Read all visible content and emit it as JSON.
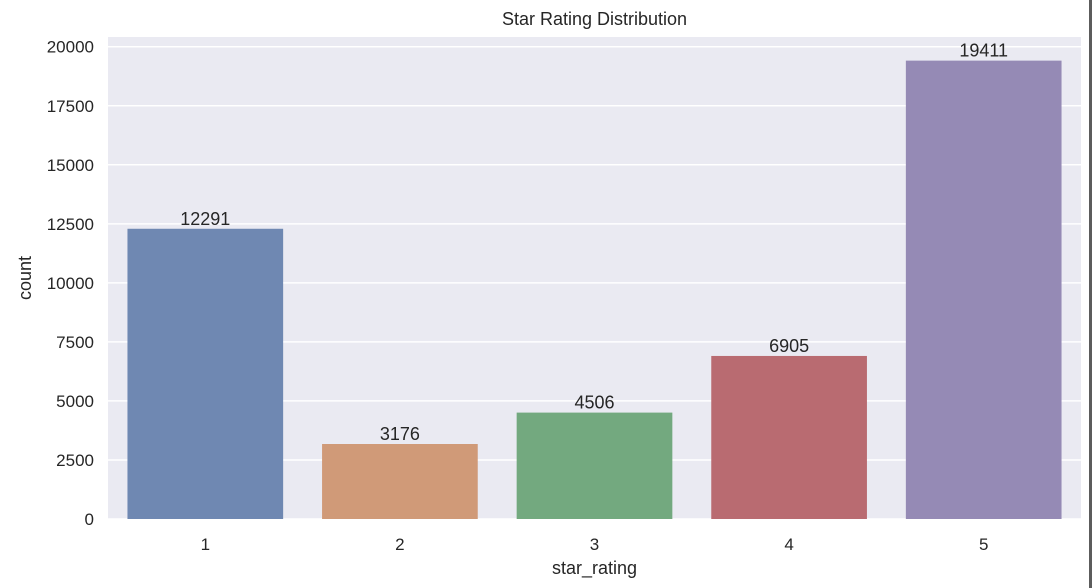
{
  "chart_data": {
    "type": "bar",
    "title": "Star Rating Distribution",
    "xlabel": "star_rating",
    "ylabel": "count",
    "categories": [
      "1",
      "2",
      "3",
      "4",
      "5"
    ],
    "values": [
      12291,
      3176,
      4506,
      6905,
      19411
    ],
    "ylim": [
      0,
      20412
    ],
    "yticks": [
      0,
      2500,
      5000,
      7500,
      10000,
      12500,
      15000,
      17500,
      20000
    ],
    "grid": true,
    "colors": [
      "#6f88b2",
      "#d09a78",
      "#73a97f",
      "#b96b71",
      "#958ab5"
    ],
    "background": "#eaeaf2"
  }
}
